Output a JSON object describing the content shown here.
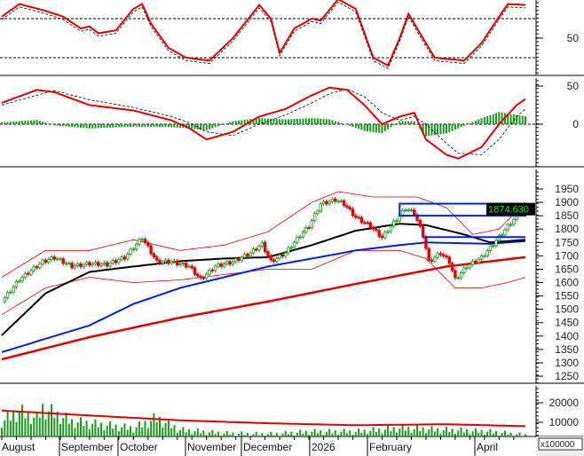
{
  "chart_data": [
    {
      "type": "line",
      "panel": "rsi",
      "yticks": [
        50
      ],
      "ylim": [
        0,
        100
      ],
      "reference_lines": [
        70,
        30
      ],
      "series": [
        {
          "color": "#e00000",
          "points": [
            [
              0,
              72
            ],
            [
              6,
              85
            ],
            [
              15,
              78
            ],
            [
              21,
              72
            ],
            [
              27,
              60
            ],
            [
              30,
              62
            ],
            [
              33,
              55
            ],
            [
              39,
              58
            ],
            [
              45,
              80
            ],
            [
              48,
              85
            ],
            [
              51,
              65
            ],
            [
              57,
              40
            ],
            [
              63,
              30
            ],
            [
              71,
              27
            ],
            [
              79,
              50
            ],
            [
              88,
              84
            ],
            [
              92,
              70
            ],
            [
              95,
              35
            ],
            [
              100,
              60
            ],
            [
              106,
              70
            ],
            [
              109,
              68
            ],
            [
              115,
              90
            ],
            [
              121,
              80
            ],
            [
              127,
              30
            ],
            [
              132,
              22
            ],
            [
              136,
              50
            ],
            [
              139,
              75
            ],
            [
              142,
              60
            ],
            [
              148,
              30
            ],
            [
              158,
              27
            ],
            [
              164,
              45
            ],
            [
              170,
              72
            ],
            [
              173,
              85
            ],
            [
              179,
              84
            ]
          ]
        }
      ]
    },
    {
      "type": "line+bar",
      "panel": "macd",
      "yticks": [
        50,
        0
      ],
      "ylim": [
        -55,
        60
      ],
      "macd": [
        [
          0,
          28
        ],
        [
          12,
          45
        ],
        [
          18,
          42
        ],
        [
          30,
          25
        ],
        [
          45,
          18
        ],
        [
          58,
          5
        ],
        [
          64,
          -5
        ],
        [
          70,
          -20
        ],
        [
          79,
          -10
        ],
        [
          88,
          10
        ],
        [
          97,
          20
        ],
        [
          106,
          38
        ],
        [
          112,
          48
        ],
        [
          118,
          45
        ],
        [
          124,
          25
        ],
        [
          130,
          0
        ],
        [
          136,
          10
        ],
        [
          141,
          15
        ],
        [
          145,
          -20
        ],
        [
          152,
          -40
        ],
        [
          156,
          -45
        ],
        [
          164,
          -30
        ],
        [
          170,
          0
        ],
        [
          176,
          25
        ],
        [
          179,
          33
        ]
      ],
      "signal": [
        [
          0,
          25
        ],
        [
          12,
          38
        ],
        [
          18,
          44
        ],
        [
          30,
          32
        ],
        [
          45,
          22
        ],
        [
          58,
          10
        ],
        [
          64,
          2
        ],
        [
          70,
          -10
        ],
        [
          79,
          -15
        ],
        [
          88,
          0
        ],
        [
          97,
          12
        ],
        [
          106,
          28
        ],
        [
          112,
          40
        ],
        [
          118,
          46
        ],
        [
          124,
          36
        ],
        [
          130,
          15
        ],
        [
          136,
          5
        ],
        [
          141,
          10
        ],
        [
          145,
          0
        ],
        [
          152,
          -25
        ],
        [
          156,
          -38
        ],
        [
          164,
          -40
        ],
        [
          170,
          -20
        ],
        [
          176,
          10
        ],
        [
          179,
          20
        ]
      ],
      "colors": {
        "macd": "#e00000",
        "signal": "#000000",
        "histogram": "#1a9a1a"
      }
    },
    {
      "type": "candlestick",
      "panel": "price",
      "yticks": [
        1950,
        1900,
        1850,
        1800,
        1750,
        1700,
        1650,
        1600,
        1550,
        1500,
        1450,
        1400,
        1350,
        1300,
        1250
      ],
      "ylim": [
        1225,
        1990
      ],
      "last_price": "1874.630",
      "close": [
        [
          0,
          1529
        ],
        [
          6,
          1612
        ],
        [
          14,
          1678
        ],
        [
          18,
          1694
        ],
        [
          24,
          1661
        ],
        [
          30,
          1671
        ],
        [
          36,
          1668
        ],
        [
          42,
          1694
        ],
        [
          48,
          1768
        ],
        [
          53,
          1678
        ],
        [
          58,
          1678
        ],
        [
          64,
          1661
        ],
        [
          68,
          1612
        ],
        [
          73,
          1661
        ],
        [
          79,
          1678
        ],
        [
          85,
          1711
        ],
        [
          89,
          1744
        ],
        [
          92,
          1678
        ],
        [
          97,
          1711
        ],
        [
          102,
          1777
        ],
        [
          105,
          1811
        ],
        [
          109,
          1894
        ],
        [
          114,
          1910
        ],
        [
          117,
          1894
        ],
        [
          121,
          1844
        ],
        [
          126,
          1811
        ],
        [
          130,
          1768
        ],
        [
          133,
          1811
        ],
        [
          138,
          1877
        ],
        [
          141,
          1860
        ],
        [
          144,
          1777
        ],
        [
          146,
          1678
        ],
        [
          150,
          1711
        ],
        [
          153,
          1678
        ],
        [
          155,
          1612
        ],
        [
          159,
          1661
        ],
        [
          164,
          1694
        ],
        [
          168,
          1744
        ],
        [
          173,
          1811
        ],
        [
          177,
          1860
        ],
        [
          179,
          1874.63
        ]
      ],
      "ma_black": [
        [
          0,
          1403
        ],
        [
          15,
          1560
        ],
        [
          30,
          1640
        ],
        [
          45,
          1660
        ],
        [
          61,
          1680
        ],
        [
          76,
          1690
        ],
        [
          91,
          1695
        ],
        [
          106,
          1740
        ],
        [
          121,
          1794
        ],
        [
          136,
          1820
        ],
        [
          145,
          1815
        ],
        [
          158,
          1780
        ],
        [
          167,
          1750
        ],
        [
          179,
          1760
        ]
      ],
      "ma_blue": [
        [
          0,
          1340
        ],
        [
          30,
          1440
        ],
        [
          45,
          1520
        ],
        [
          61,
          1580
        ],
        [
          76,
          1620
        ],
        [
          91,
          1660
        ],
        [
          106,
          1690
        ],
        [
          121,
          1720
        ],
        [
          136,
          1740
        ],
        [
          145,
          1750
        ],
        [
          167,
          1745
        ],
        [
          179,
          1755
        ]
      ],
      "ma_red": [
        [
          0,
          1313
        ],
        [
          30,
          1396
        ],
        [
          61,
          1469
        ],
        [
          91,
          1529
        ],
        [
          121,
          1595
        ],
        [
          152,
          1660
        ],
        [
          179,
          1695
        ]
      ],
      "bb_upper": [
        [
          0,
          1620
        ],
        [
          15,
          1720
        ],
        [
          30,
          1720
        ],
        [
          45,
          1760
        ],
        [
          61,
          1720
        ],
        [
          76,
          1740
        ],
        [
          91,
          1790
        ],
        [
          106,
          1900
        ],
        [
          115,
          1940
        ],
        [
          127,
          1920
        ],
        [
          142,
          1920
        ],
        [
          152,
          1880
        ],
        [
          161,
          1780
        ],
        [
          170,
          1800
        ],
        [
          179,
          1900
        ]
      ],
      "bb_lower": [
        [
          0,
          1480
        ],
        [
          15,
          1580
        ],
        [
          30,
          1620
        ],
        [
          45,
          1600
        ],
        [
          61,
          1610
        ],
        [
          76,
          1630
        ],
        [
          91,
          1650
        ],
        [
          106,
          1650
        ],
        [
          121,
          1720
        ],
        [
          136,
          1720
        ],
        [
          145,
          1690
        ],
        [
          155,
          1580
        ],
        [
          164,
          1580
        ],
        [
          173,
          1600
        ],
        [
          179,
          1620
        ]
      ],
      "resistance_box": {
        "from": 136,
        "to": 179,
        "low": 1850,
        "high": 1895
      },
      "support_line": {
        "from": 144,
        "to": 179,
        "value": 1770
      },
      "colors": {
        "up": "#1a9a1a",
        "down": "#e00000",
        "ma_black": "#000000",
        "ma_blue": "#0020e0",
        "ma_red": "#e00000",
        "bands": "#e00000",
        "box": "#0020e0"
      }
    },
    {
      "type": "bar",
      "panel": "volume",
      "yticks": [
        20000,
        10000
      ],
      "unit_label": "x100000",
      "volume": [
        [
          0,
          12000
        ],
        [
          6,
          18000
        ],
        [
          12,
          14000
        ],
        [
          14,
          20000
        ],
        [
          24,
          12000
        ],
        [
          45,
          8000
        ],
        [
          53,
          14000
        ],
        [
          61,
          7000
        ],
        [
          76,
          5000
        ],
        [
          91,
          4500
        ],
        [
          106,
          6000
        ],
        [
          121,
          6000
        ],
        [
          136,
          8000
        ],
        [
          152,
          7000
        ],
        [
          167,
          6000
        ],
        [
          179,
          4000
        ]
      ],
      "volume_ma": [
        [
          0,
          16000
        ],
        [
          30,
          13500
        ],
        [
          61,
          11000
        ],
        [
          91,
          9500
        ],
        [
          121,
          8500
        ],
        [
          152,
          9000
        ],
        [
          179,
          8000
        ]
      ],
      "colors": {
        "bars": "#1a9a1a",
        "ma": "#e00000"
      }
    }
  ],
  "x_axis": {
    "labels": [
      "August",
      "September",
      "October",
      "November",
      "December",
      "2026",
      "February",
      "April"
    ]
  }
}
